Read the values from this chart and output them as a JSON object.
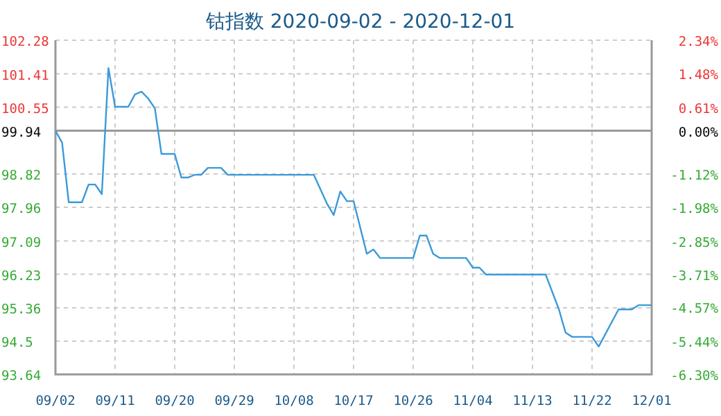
{
  "chart_data": {
    "type": "line",
    "title": "钴指数 2020-09-02 - 2020-12-01",
    "series": [
      {
        "color": "#3a9ad9",
        "x": [
          "--09-02",
          "--09-03",
          "--09-04",
          "--09-06",
          "--09-07",
          "--09-08",
          "--09-09",
          "--09-10",
          "--09-11",
          "--09-13",
          "--09-14",
          "--09-15",
          "--09-16",
          "--09-17",
          "--09-18",
          "--09-20",
          "--09-21",
          "--09-22",
          "--09-23",
          "--09-24",
          "--09-25",
          "--09-27",
          "--09-28",
          "--10-11",
          "--10-13",
          "--10-14",
          "--10-15",
          "--10-16",
          "--10-17",
          "--10-19",
          "--10-20",
          "--10-21",
          "--10-26",
          "--10-27",
          "--10-28",
          "--10-29",
          "--10-30",
          "--11-03",
          "--11-04",
          "--11-05",
          "--11-06",
          "--11-15",
          "--11-17",
          "--11-18",
          "--11-19",
          "--11-22",
          "--11-23",
          "--11-26",
          "--11-28",
          "--11-29",
          "--12-01"
        ],
        "values": [
          99.94,
          99.63,
          98.09,
          98.09,
          98.55,
          98.55,
          98.3,
          101.56,
          100.56,
          100.56,
          100.88,
          100.95,
          100.77,
          100.52,
          99.34,
          99.34,
          98.73,
          98.73,
          98.8,
          98.8,
          98.98,
          98.98,
          98.8,
          98.8,
          98.05,
          97.76,
          98.37,
          98.12,
          98.12,
          96.76,
          96.87,
          96.65,
          96.65,
          97.23,
          97.23,
          96.76,
          96.65,
          96.65,
          96.4,
          96.4,
          96.22,
          96.22,
          95.32,
          94.72,
          94.61,
          94.61,
          94.36,
          95.32,
          95.32,
          95.43,
          95.43
        ]
      }
    ],
    "xlim": [
      "--09-02",
      "--12-01"
    ],
    "xticks": [
      {
        "value": "--09-02",
        "label": "09/02"
      },
      {
        "value": "--09-11",
        "label": "09/11"
      },
      {
        "value": "--09-20",
        "label": "09/20"
      },
      {
        "value": "--09-29",
        "label": "09/29"
      },
      {
        "value": "--10-08",
        "label": "10/08"
      },
      {
        "value": "--10-17",
        "label": "10/17"
      },
      {
        "value": "--10-26",
        "label": "10/26"
      },
      {
        "value": "--11-04",
        "label": "11/04"
      },
      {
        "value": "--11-13",
        "label": "11/13"
      },
      {
        "value": "--11-22",
        "label": "11/22"
      },
      {
        "value": "--12-01",
        "label": "12/01"
      }
    ],
    "ylim": [
      93.64,
      102.28
    ],
    "yticks": [
      93.64,
      94.5,
      95.36,
      96.23,
      97.09,
      97.96,
      98.82,
      99.94,
      100.55,
      101.41,
      102.28
    ],
    "y2lim": [
      -6.3,
      2.34
    ],
    "y2ticks": [
      {
        "value": -6.3,
        "label": "-6.30%"
      },
      {
        "value": -5.44,
        "label": "-5.44%"
      },
      {
        "value": -4.57,
        "label": "-4.57%"
      },
      {
        "value": -3.71,
        "label": "-3.71%"
      },
      {
        "value": -2.85,
        "label": "-2.85%"
      },
      {
        "value": -1.98,
        "label": "-1.98%"
      },
      {
        "value": -1.12,
        "label": "-1.12%"
      },
      {
        "value": 0,
        "label": "0.00%"
      },
      {
        "value": 0.61,
        "label": "0.61%"
      },
      {
        "value": 1.48,
        "label": "1.48%"
      },
      {
        "value": 2.34,
        "label": "2.34%"
      }
    ],
    "ref_lines": [
      {
        "axis": "y",
        "value": 99.94,
        "color": "#999999"
      }
    ],
    "grid": true,
    "line_style": "solid",
    "marker": "none"
  }
}
